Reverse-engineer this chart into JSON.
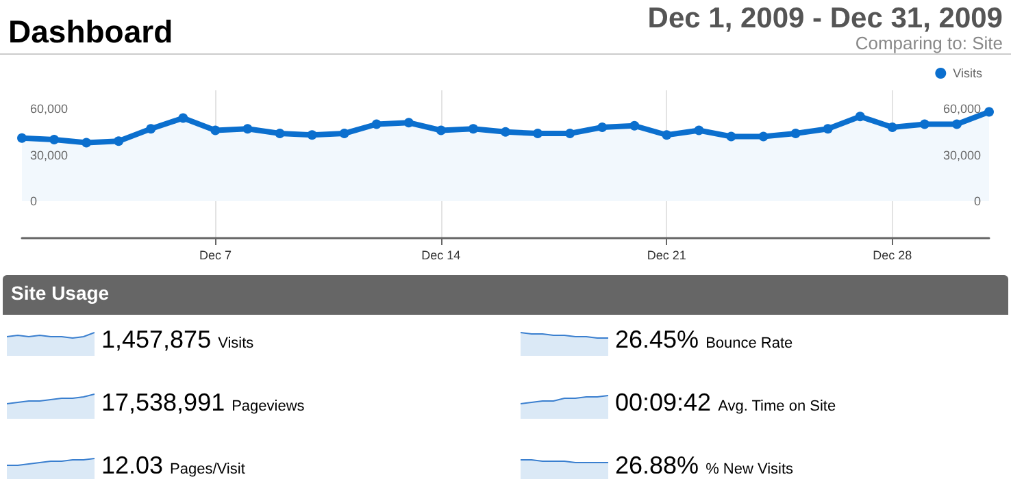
{
  "chart_data": {
    "type": "area",
    "title": "Dashboard",
    "subtitle": "Dec 1, 2009 - Dec 31, 2009",
    "annotations": [
      "Comparing to: Site",
      "Site Usage",
      "1,457,875",
      "Visits",
      "26.45%",
      "Bounce Rate",
      "17,538,991",
      "Pageviews",
      "00:09:42",
      "Avg. Time on Site",
      "12.03",
      "Pages/Visit",
      "26.88%",
      "% New Visits"
    ],
    "x": [
      "2009-12-01",
      "2009-12-02",
      "2009-12-03",
      "2009-12-04",
      "2009-12-05",
      "2009-12-06",
      "2009-12-07",
      "2009-12-08",
      "2009-12-09",
      "2009-12-10",
      "2009-12-11",
      "2009-12-12",
      "2009-12-13",
      "2009-12-14",
      "2009-12-15",
      "2009-12-16",
      "2009-12-17",
      "2009-12-18",
      "2009-12-19",
      "2009-12-20",
      "2009-12-21",
      "2009-12-22",
      "2009-12-23",
      "2009-12-24",
      "2009-12-25",
      "2009-12-26",
      "2009-12-27",
      "2009-12-28",
      "2009-12-29",
      "2009-12-30",
      "2009-12-31"
    ],
    "series": [
      {
        "name": "Visits",
        "color": "#0b6fce",
        "values": [
          41000,
          40000,
          38000,
          39000,
          47000,
          54000,
          46000,
          47000,
          44000,
          43000,
          44000,
          50000,
          51000,
          46000,
          47000,
          45000,
          44000,
          44000,
          48000,
          49000,
          43000,
          46000,
          42000,
          42000,
          44000,
          47000,
          55000,
          48000,
          50000,
          50000,
          58000
        ]
      }
    ],
    "xlim": [
      "2009-12-01",
      "2009-12-31"
    ],
    "xticks": [
      {
        "value": "2009-12-07",
        "label": "Dec 7"
      },
      {
        "value": "2009-12-14",
        "label": "Dec 14"
      },
      {
        "value": "2009-12-21",
        "label": "Dec 21"
      },
      {
        "value": "2009-12-28",
        "label": "Dec 28"
      }
    ],
    "ylim": [
      -24000,
      72000
    ],
    "yticks": [
      {
        "value": 0,
        "label": "0"
      },
      {
        "value": 30000,
        "label": "30,000"
      },
      {
        "value": 60000,
        "label": "60,000"
      }
    ],
    "y2lim": [
      -24000,
      72000
    ],
    "y2ticks": [
      {
        "value": 0,
        "label": "0"
      },
      {
        "value": 30000,
        "label": "30,000"
      },
      {
        "value": 60000,
        "label": "60,000"
      }
    ],
    "grid": "x",
    "legend": "top right",
    "marker": "circle",
    "line_style": "solid"
  }
}
